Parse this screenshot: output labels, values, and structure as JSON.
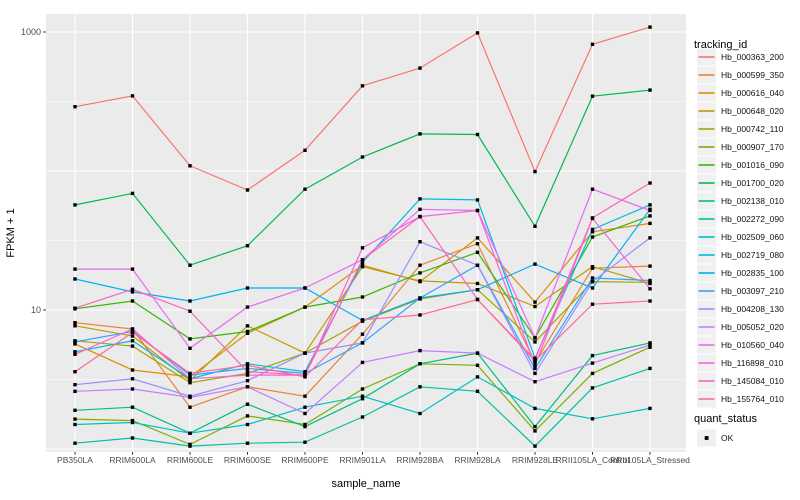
{
  "chart_data": {
    "type": "line",
    "x_axis": {
      "title": "sample_name",
      "categories": [
        "PB350LA",
        "RRIM600LA",
        "RRIM600LE",
        "RRIM600SE",
        "RRIM600PE",
        "RRIM901LA",
        "RRIM928BA",
        "RRIM928LA",
        "RRIM928LE",
        "RRII105LA_Control",
        "RRII105LA_Stressed"
      ]
    },
    "y_axis": {
      "title": "FPKM + 1",
      "scale": "log10",
      "tick_labels": [
        "1000",
        "10"
      ],
      "tick_values": [
        1000,
        10
      ],
      "major_gridlines": [
        1,
        10,
        100,
        1000
      ],
      "minor_gridlines": [
        3.1623,
        31.623,
        316.23
      ],
      "range_approx": [
        1,
        1400
      ]
    },
    "legend": {
      "title": "tracking_id",
      "position": "right"
    },
    "quant_legend": {
      "title": "quant_status",
      "items": [
        {
          "label": "OK",
          "marker": "black-square"
        }
      ]
    },
    "style": {
      "panel_bg": "#EBEBEB",
      "grid_color": "#FFFFFF",
      "tick_color": "#333333",
      "tick_label_color": "#4D4D4D",
      "point_color": "#000000",
      "legend_key_bg": "#F0F0F0"
    },
    "series": [
      {
        "name": "Hb_000363_200",
        "color": "#F8766D",
        "values": [
          290,
          347,
          109,
          73,
          141,
          410,
          550,
          985,
          99,
          815,
          1085
        ]
      },
      {
        "name": "Hb_000599_350",
        "color": "#EA8331",
        "values": [
          8.1,
          7.3,
          2.0,
          2.8,
          2.4,
          6.7,
          21,
          30,
          4.2,
          20,
          20.7
        ]
      },
      {
        "name": "Hb_000616_040",
        "color": "#D89000",
        "values": [
          5.7,
          3.7,
          3.3,
          6.8,
          10.5,
          21,
          16,
          33,
          11.4,
          36.5,
          42
        ]
      },
      {
        "name": "Hb_000648_020",
        "color": "#C09B00",
        "values": [
          7.7,
          6.5,
          3.1,
          7.7,
          4.9,
          20.5,
          16.2,
          15.5,
          10.6,
          20.5,
          15.5
        ]
      },
      {
        "name": "Hb_000742_110",
        "color": "#A3A500",
        "values": [
          6.0,
          5.5,
          3.0,
          3.5,
          4.9,
          8.3,
          12.0,
          14,
          5.9,
          16,
          15.8
        ]
      },
      {
        "name": "Hb_000907_170",
        "color": "#7CAE00",
        "values": [
          1.64,
          1.6,
          1.08,
          1.73,
          1.5,
          2.7,
          4.1,
          4.0,
          1.35,
          3.5,
          5.4
        ]
      },
      {
        "name": "Hb_001016_090",
        "color": "#39B600",
        "values": [
          10.2,
          11.6,
          6.2,
          7.0,
          10.5,
          12.4,
          18.5,
          26,
          6.3,
          33.5,
          47.5
        ]
      },
      {
        "name": "Hb_001700_020",
        "color": "#00BB4E",
        "values": [
          57,
          69,
          21,
          29,
          74,
          126,
          185,
          183,
          40,
          345,
          382
        ]
      },
      {
        "name": "Hb_002138_010",
        "color": "#00BF7D",
        "values": [
          1.9,
          2.0,
          1.3,
          2.1,
          1.45,
          2.3,
          4.1,
          4.9,
          1.45,
          4.7,
          5.8
        ]
      },
      {
        "name": "Hb_002272_090",
        "color": "#00C1A3",
        "values": [
          1.1,
          1.2,
          1.05,
          1.1,
          1.12,
          1.7,
          2.8,
          2.6,
          1.05,
          2.75,
          3.8
        ]
      },
      {
        "name": "Hb_002509_060",
        "color": "#00BFC4",
        "values": [
          1.5,
          1.55,
          1.3,
          1.5,
          2.0,
          2.4,
          1.8,
          3.3,
          1.96,
          1.65,
          1.96
        ]
      },
      {
        "name": "Hb_002719_080",
        "color": "#00BAE0",
        "values": [
          5.0,
          6.0,
          3.2,
          4.1,
          3.6,
          22,
          63,
          62,
          4.5,
          38,
          57
        ]
      },
      {
        "name": "Hb_002835_100",
        "color": "#00B0F6",
        "values": [
          16.7,
          13.5,
          11.6,
          14.4,
          14.4,
          8.4,
          12.2,
          14,
          21.4,
          14.4,
          53
        ]
      },
      {
        "name": "Hb_003097_210",
        "color": "#35A2FF",
        "values": [
          5.9,
          7.0,
          3.4,
          3.8,
          3.5,
          5.8,
          12.2,
          21,
          3.8,
          17,
          16.3
        ]
      },
      {
        "name": "Hb_004208_130",
        "color": "#9590FF",
        "values": [
          2.9,
          3.2,
          2.4,
          3.1,
          4.9,
          5.8,
          31,
          21,
          3.5,
          16,
          33
        ]
      },
      {
        "name": "Hb_005052_020",
        "color": "#C77CFF",
        "values": [
          2.6,
          2.7,
          2.35,
          2.8,
          1.8,
          4.2,
          5.1,
          4.9,
          3.05,
          4.15,
          5.6
        ]
      },
      {
        "name": "Hb_010560_040",
        "color": "#E76BF3",
        "values": [
          19.7,
          19.7,
          5.3,
          10.5,
          14.4,
          23,
          53,
          52,
          6.3,
          74,
          52
        ]
      },
      {
        "name": "Hb_116898_010",
        "color": "#FA62DB",
        "values": [
          4.8,
          7.3,
          3.2,
          3.4,
          3.4,
          28,
          47,
          52,
          4.0,
          45.6,
          14.2
        ]
      },
      {
        "name": "Hb_145084_010",
        "color": "#FF62BC",
        "values": [
          10.3,
          14.1,
          9.8,
          3.6,
          3.4,
          23,
          47,
          11.9,
          4.4,
          46,
          82
        ]
      },
      {
        "name": "Hb_155764_010",
        "color": "#FF6A98",
        "values": [
          3.6,
          6.9,
          3.5,
          4.0,
          3.3,
          8.5,
          9.2,
          11.9,
          4.3,
          11,
          11.6
        ]
      }
    ]
  }
}
